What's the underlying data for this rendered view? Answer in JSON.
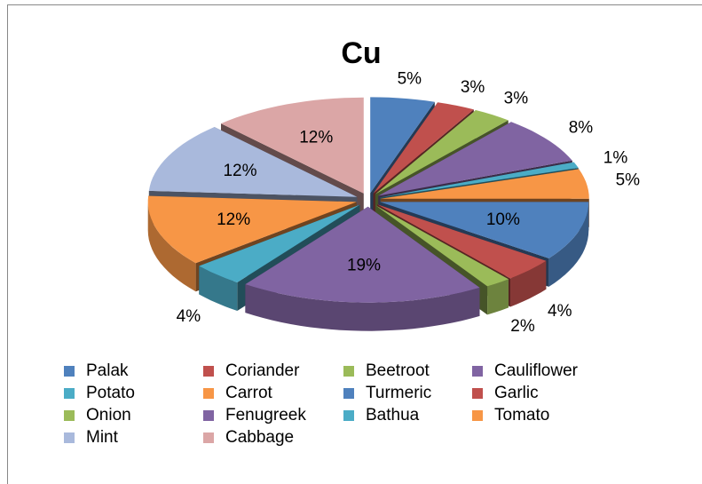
{
  "chart_data": {
    "type": "pie3d",
    "title": "Cu",
    "categories": [
      "Palak",
      "Coriander",
      "Beetroot",
      "Cauliflower",
      "Potato",
      "Carrot",
      "Turmeric",
      "Garlic",
      "Onion",
      "Fenugreek",
      "Bathua",
      "Tomato",
      "Mint",
      "Cabbage"
    ],
    "values": [
      5,
      3,
      3,
      8,
      1,
      5,
      10,
      4,
      2,
      19,
      4,
      12,
      12,
      12
    ],
    "value_labels": [
      "5%",
      "3%",
      "3%",
      "8%",
      "1%",
      "5%",
      "10%",
      "4%",
      "2%",
      "19%",
      "4%",
      "12%",
      "12%",
      "12%"
    ],
    "colors": [
      "#4f81bd",
      "#c0504d",
      "#9bbb59",
      "#8064a2",
      "#4bacc6",
      "#f79646",
      "#4f81bd",
      "#c0504d",
      "#9bbb59",
      "#8064a2",
      "#4bacc6",
      "#f79646",
      "#a9b9dc",
      "#dba6a6"
    ],
    "legend": "bottom"
  }
}
